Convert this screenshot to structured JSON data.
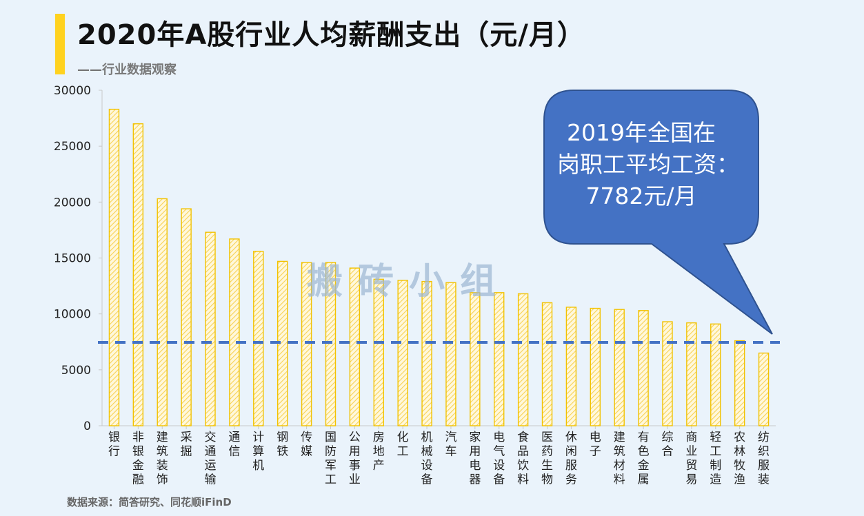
{
  "header": {
    "title": "2020年A股行业人均薪酬支出（元/月）",
    "subtitle": "——行业数据观察"
  },
  "footer": {
    "source": "数据来源：简答研究、同花顺iFinD"
  },
  "watermark": "搬砖小组",
  "colors": {
    "bar_stroke": "#f2c200",
    "bar_hatch": "#f7d254",
    "reference_line": "#4472c4",
    "callout_fill": "#4472c4",
    "callout_stroke": "#2f528f",
    "background": "#eaf3fb",
    "accent": "#ffd21f"
  },
  "chart_data": {
    "type": "bar",
    "title": "2020年A股行业人均薪酬支出（元/月）",
    "xlabel": "",
    "ylabel": "",
    "ylim": [
      0,
      30000
    ],
    "yticks": [
      0,
      5000,
      10000,
      15000,
      20000,
      25000,
      30000
    ],
    "categories": [
      "银行",
      "非银金融",
      "建筑装饰",
      "采掘",
      "交通运输",
      "通信",
      "计算机",
      "钢铁",
      "传媒",
      "国防军工",
      "公用事业",
      "房地产",
      "化工",
      "机械设备",
      "汽车",
      "家用电器",
      "电气设备",
      "食品饮料",
      "医药生物",
      "休闲服务",
      "电子",
      "建筑材料",
      "有色金属",
      "综合",
      "商业贸易",
      "轻工制造",
      "农林牧渔",
      "纺织服装"
    ],
    "values": [
      28300,
      27000,
      20300,
      19400,
      17300,
      16700,
      15600,
      14700,
      14600,
      14600,
      14100,
      13100,
      13000,
      12900,
      12800,
      11900,
      11900,
      11800,
      11000,
      10600,
      10500,
      10400,
      10300,
      9300,
      9200,
      9100,
      7600,
      6500
    ],
    "reference_line": {
      "value": 7782,
      "style": "dashed",
      "label_lines": [
        "2019年全国在",
        "岗职工平均工资：",
        "7782元/月"
      ]
    },
    "grid": false,
    "legend": "none"
  }
}
